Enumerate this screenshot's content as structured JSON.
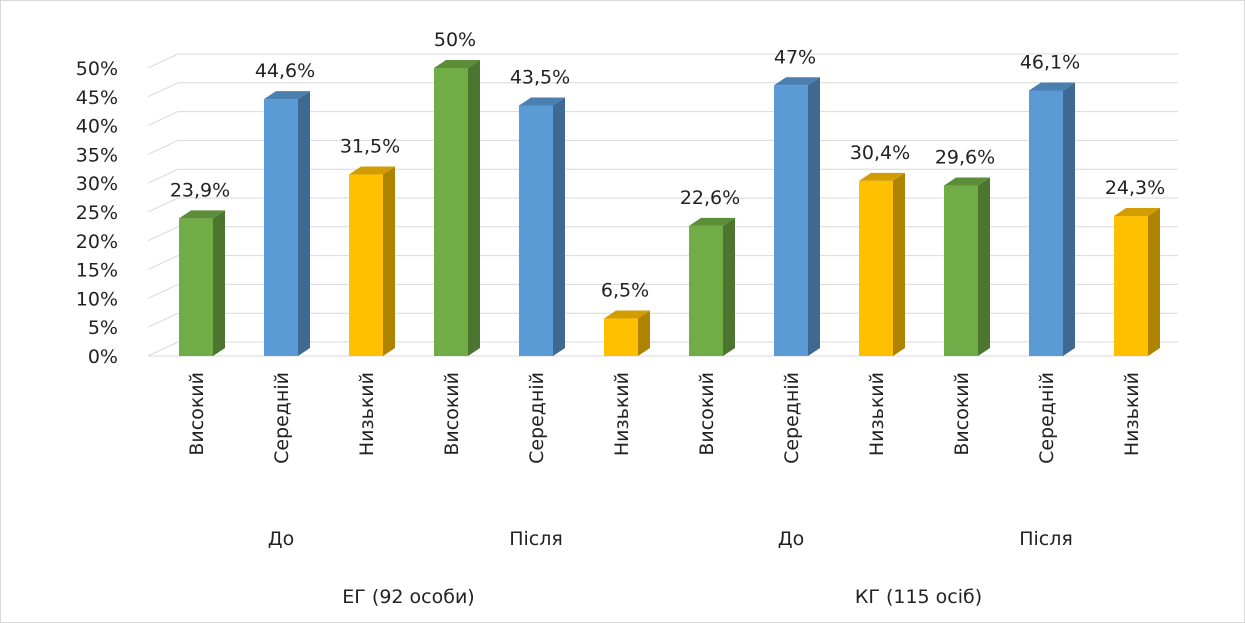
{
  "chart_data": {
    "type": "bar",
    "title": "",
    "xlabel": "",
    "ylabel": "",
    "ylim": [
      0,
      50
    ],
    "yticks": [
      "0%",
      "5%",
      "10%",
      "15%",
      "20%",
      "25%",
      "30%",
      "35%",
      "40%",
      "45%",
      "50%"
    ],
    "grid": true,
    "style": "3d-column",
    "colors": {
      "Високий": "#70ad47",
      "Середній": "#5b9bd5",
      "Низький": "#ffc000"
    },
    "bars": [
      {
        "category": "Високий",
        "value": 23.9,
        "label": "23,9%"
      },
      {
        "category": "Середній",
        "value": 44.6,
        "label": "44,6%"
      },
      {
        "category": "Низький",
        "value": 31.5,
        "label": "31,5%"
      },
      {
        "category": "Високий",
        "value": 50.0,
        "label": "50%"
      },
      {
        "category": "Середній",
        "value": 43.5,
        "label": "43,5%"
      },
      {
        "category": "Низький",
        "value": 6.5,
        "label": "6,5%"
      },
      {
        "category": "Високий",
        "value": 22.6,
        "label": "22,6%"
      },
      {
        "category": "Середній",
        "value": 47.0,
        "label": "47%"
      },
      {
        "category": "Низький",
        "value": 30.4,
        "label": "30,4%"
      },
      {
        "category": "Високий",
        "value": 29.6,
        "label": "29,6%"
      },
      {
        "category": "Середній",
        "value": 46.1,
        "label": "46,1%"
      },
      {
        "category": "Низький",
        "value": 24.3,
        "label": "24,3%"
      }
    ],
    "period_groups": [
      {
        "label": "До",
        "bar_start": 0,
        "bar_count": 3
      },
      {
        "label": "Після",
        "bar_start": 3,
        "bar_count": 3
      },
      {
        "label": "До",
        "bar_start": 6,
        "bar_count": 3
      },
      {
        "label": "Після",
        "bar_start": 9,
        "bar_count": 3
      }
    ],
    "sample_groups": [
      {
        "label": "ЕГ (92 особи)",
        "bar_start": 0,
        "bar_count": 6
      },
      {
        "label": "КГ (115 осіб)",
        "bar_start": 6,
        "bar_count": 6
      }
    ]
  }
}
